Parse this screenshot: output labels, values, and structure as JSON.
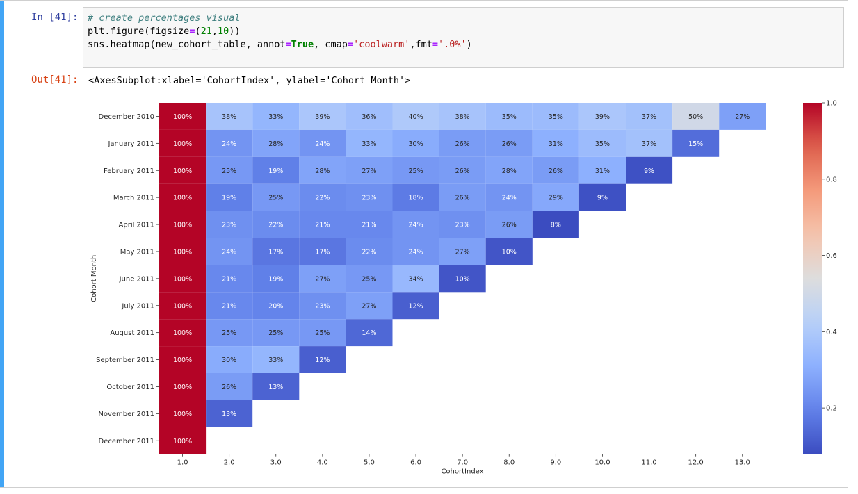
{
  "notebook": {
    "in_prompt": "In [41]:",
    "out_prompt": "Out[41]:",
    "code": {
      "line1_comment": "# create percentages visual",
      "line2_a": "plt.figure(figsize",
      "line2_eq": "=",
      "line2_b": "(",
      "line2_n1": "21",
      "line2_c": ",",
      "line2_n2": "10",
      "line2_d": "))",
      "line3_a": "sns.heatmap(new_cohort_table, annot",
      "line3_eq1": "=",
      "line3_true": "True",
      "line3_b": ", cmap",
      "line3_eq2": "=",
      "line3_str1": "'coolwarm'",
      "line3_c": ",fmt",
      "line3_eq3": "=",
      "line3_str2": "'.0%'",
      "line3_d": ")"
    },
    "output_repr": "<AxesSubplot:xlabel='CohortIndex', ylabel='Cohort Month'>"
  },
  "chart_data": {
    "type": "heatmap",
    "xlabel": "CohortIndex",
    "ylabel": "Cohort Month",
    "colormap": "coolwarm",
    "value_format": "percent",
    "x_categories": [
      "1.0",
      "2.0",
      "3.0",
      "4.0",
      "5.0",
      "6.0",
      "7.0",
      "8.0",
      "9.0",
      "10.0",
      "11.0",
      "12.0",
      "13.0"
    ],
    "y_categories": [
      "December 2010",
      "January 2011",
      "February 2011",
      "March 2011",
      "April 2011",
      "May 2011",
      "June 2011",
      "July 2011",
      "August 2011",
      "September 2011",
      "October 2011",
      "November 2011",
      "December 2011"
    ],
    "values": [
      [
        1.0,
        0.38,
        0.33,
        0.39,
        0.36,
        0.4,
        0.38,
        0.35,
        0.35,
        0.39,
        0.37,
        0.5,
        0.27
      ],
      [
        1.0,
        0.24,
        0.28,
        0.24,
        0.33,
        0.3,
        0.26,
        0.26,
        0.31,
        0.35,
        0.37,
        0.15
      ],
      [
        1.0,
        0.25,
        0.19,
        0.28,
        0.27,
        0.25,
        0.26,
        0.28,
        0.26,
        0.31,
        0.09
      ],
      [
        1.0,
        0.19,
        0.25,
        0.22,
        0.23,
        0.18,
        0.26,
        0.24,
        0.29,
        0.09
      ],
      [
        1.0,
        0.23,
        0.22,
        0.21,
        0.21,
        0.24,
        0.23,
        0.26,
        0.08
      ],
      [
        1.0,
        0.24,
        0.17,
        0.17,
        0.22,
        0.24,
        0.27,
        0.1
      ],
      [
        1.0,
        0.21,
        0.19,
        0.27,
        0.25,
        0.34,
        0.1
      ],
      [
        1.0,
        0.21,
        0.2,
        0.23,
        0.27,
        0.12
      ],
      [
        1.0,
        0.25,
        0.25,
        0.25,
        0.14
      ],
      [
        1.0,
        0.3,
        0.33,
        0.12
      ],
      [
        1.0,
        0.26,
        0.13
      ],
      [
        1.0,
        0.13
      ],
      [
        1.0
      ]
    ],
    "colorbar": {
      "min": 0.08,
      "max": 1.0,
      "ticks": [
        0.2,
        0.4,
        0.6,
        0.8,
        1.0
      ]
    },
    "legend_position": "right"
  }
}
